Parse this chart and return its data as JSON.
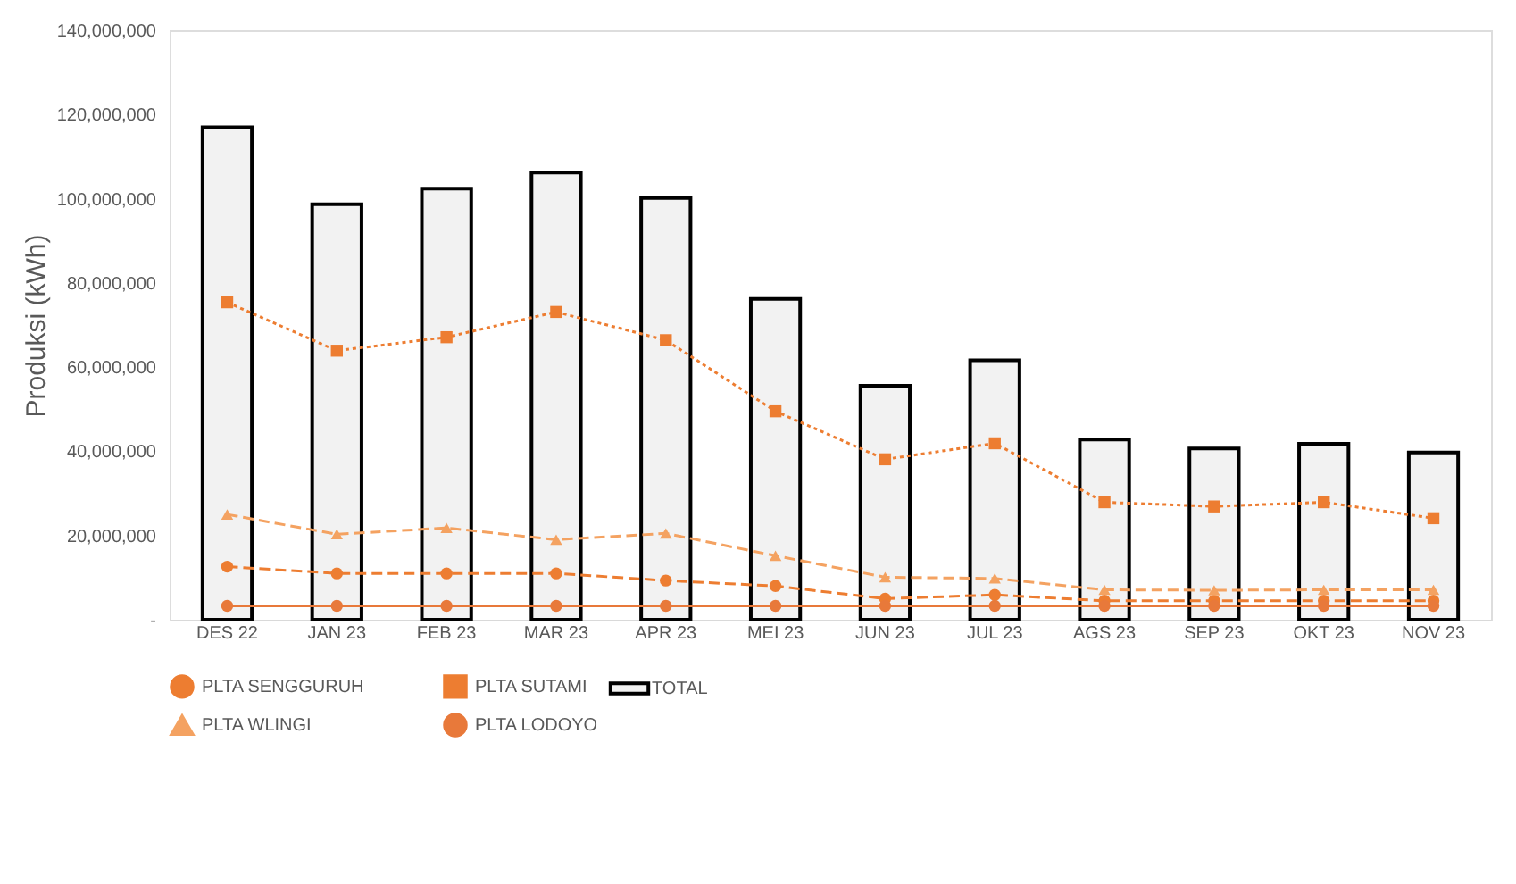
{
  "chart_data": {
    "type": "bar",
    "ylabel": "Produksi (kWh)",
    "categories": [
      "DES 22",
      "JAN 23",
      "FEB 23",
      "MAR 23",
      "APR 23",
      "MEI 23",
      "JUN 23",
      "JUL 23",
      "AGS 23",
      "SEP 23",
      "OKT 23",
      "NOV 23"
    ],
    "ylim": [
      0,
      140000000
    ],
    "yticks": [
      {
        "value": 0,
        "label": "-"
      },
      {
        "value": 20000000,
        "label": "20,000,000"
      },
      {
        "value": 40000000,
        "label": "40,000,000"
      },
      {
        "value": 60000000,
        "label": "60,000,000"
      },
      {
        "value": 80000000,
        "label": "80,000,000"
      },
      {
        "value": 100000000,
        "label": "100,000,000"
      },
      {
        "value": 120000000,
        "label": "120,000,000"
      },
      {
        "value": 140000000,
        "label": "140,000,000"
      }
    ],
    "grid": false,
    "legend": "bottom",
    "series": [
      {
        "name": "TOTAL",
        "color": "#f2f2f2",
        "values": [
          117000000,
          98700000,
          102400000,
          106200000,
          100200000,
          76200000,
          55600000,
          61600000,
          42800000,
          40700000,
          41800000,
          39700000
        ]
      },
      {
        "name": "PLTA SENGGURUH",
        "type": "line",
        "color": "#ed7d31",
        "marker": "circle",
        "line_style": "dashed",
        "values": [
          12600000,
          11000000,
          11000000,
          11000000,
          9300000,
          8000000,
          5000000,
          5900000,
          4500000,
          4500000,
          4500000,
          4500000
        ]
      },
      {
        "name": "PLTA SUTAMI",
        "type": "line",
        "color": "#ed7d31",
        "marker": "square",
        "line_style": "dotted",
        "values": [
          75400000,
          63900000,
          67100000,
          73100000,
          66400000,
          49500000,
          38100000,
          41900000,
          27900000,
          26900000,
          27900000,
          24100000
        ]
      },
      {
        "name": "PLTA WLINGI",
        "type": "line",
        "color": "#f4a261",
        "marker": "triangle",
        "line_style": "dashed",
        "values": [
          25000000,
          20300000,
          21800000,
          19000000,
          20500000,
          15200000,
          10100000,
          9800000,
          7100000,
          7000000,
          7100000,
          7100000
        ]
      },
      {
        "name": "PLTA LODOYO",
        "type": "line",
        "color": "#e8793a",
        "marker": "circle",
        "line_style": "solid",
        "values": [
          3300000,
          3300000,
          3300000,
          3300000,
          3300000,
          3300000,
          3300000,
          3300000,
          3300000,
          3300000,
          3300000,
          3300000
        ]
      }
    ]
  }
}
